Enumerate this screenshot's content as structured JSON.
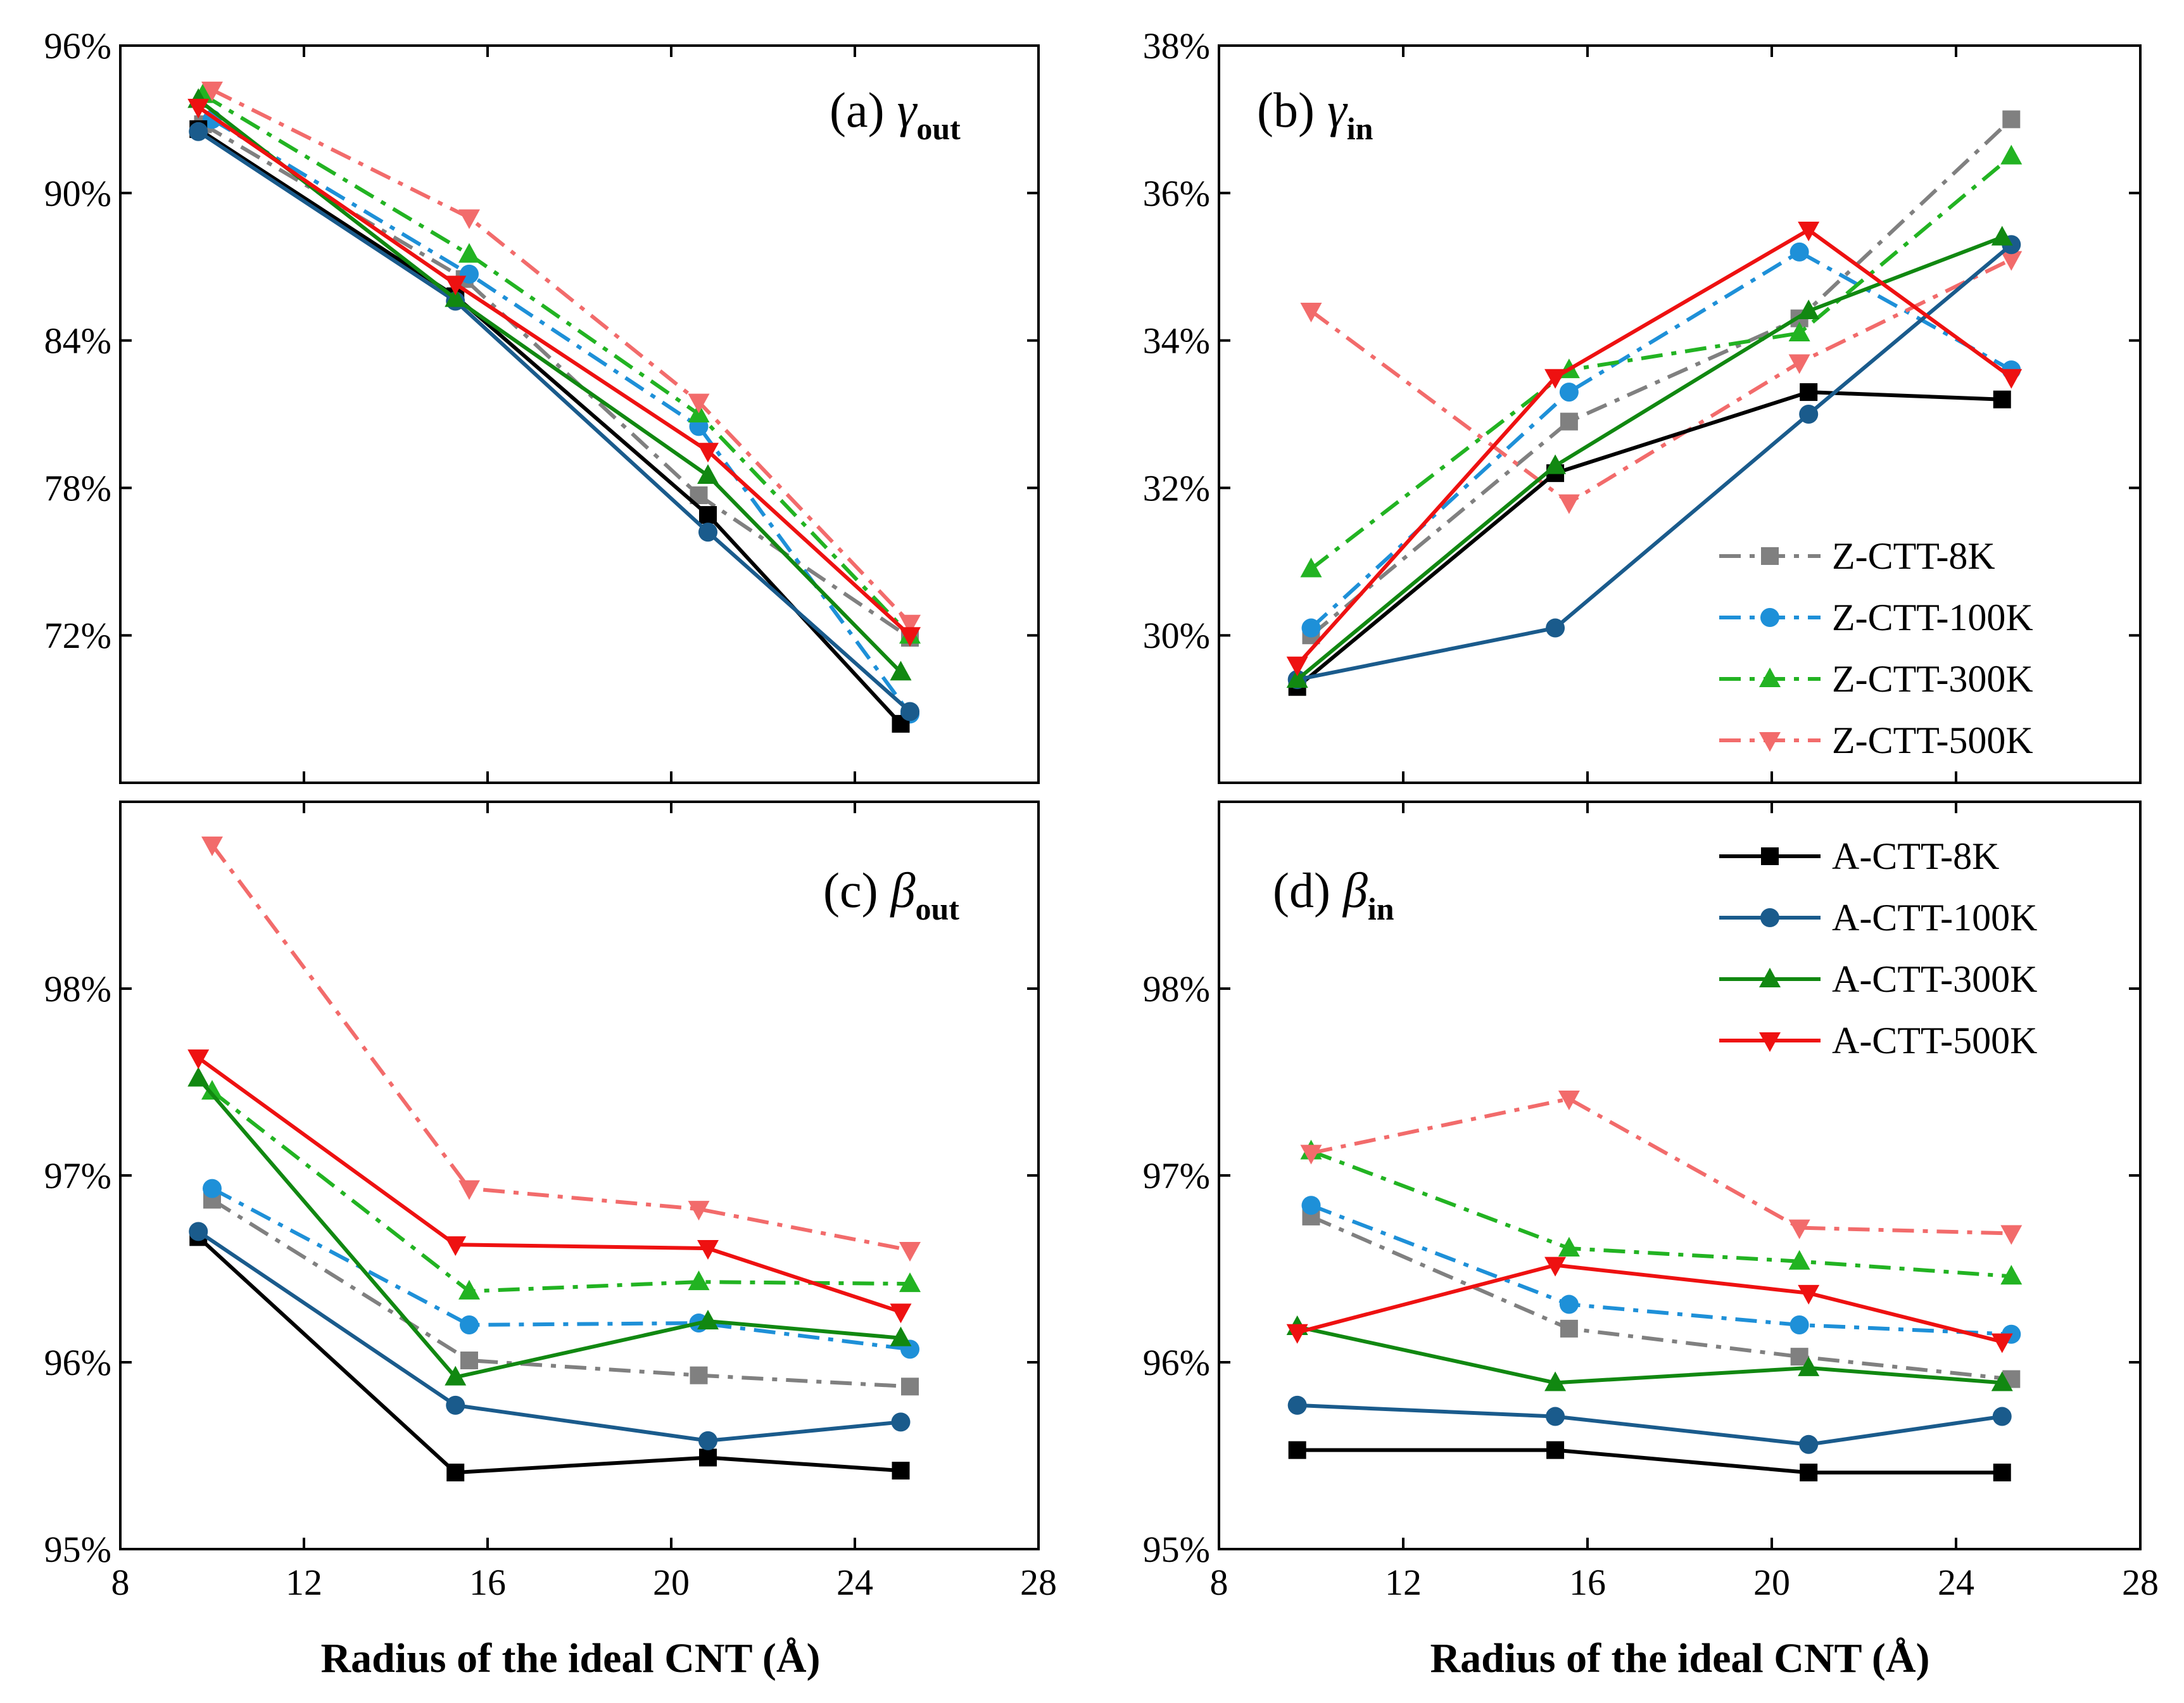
{
  "figure": {
    "xlabel": "Radius of the ideal CNT (Å)"
  },
  "series_styles": {
    "Z-CTT-8K": {
      "color": "#808080",
      "dash": "dashdot",
      "marker": "square"
    },
    "Z-CTT-100K": {
      "color": "#1E90D8",
      "dash": "dashdot",
      "marker": "circle"
    },
    "Z-CTT-300K": {
      "color": "#22B322",
      "dash": "dashdot",
      "marker": "triangle-up"
    },
    "Z-CTT-500K": {
      "color": "#F26B6B",
      "dash": "dashdot",
      "marker": "triangle-down"
    },
    "A-CTT-8K": {
      "color": "#000000",
      "dash": "solid",
      "marker": "square"
    },
    "A-CTT-100K": {
      "color": "#1A5B8C",
      "dash": "solid",
      "marker": "circle"
    },
    "A-CTT-300K": {
      "color": "#118811",
      "dash": "solid",
      "marker": "triangle-up"
    },
    "A-CTT-500K": {
      "color": "#EE1111",
      "dash": "solid",
      "marker": "triangle-down"
    }
  },
  "legends": {
    "zigzag": [
      "Z-CTT-8K",
      "Z-CTT-100K",
      "Z-CTT-300K",
      "Z-CTT-500K"
    ],
    "armchair": [
      "A-CTT-8K",
      "A-CTT-100K",
      "A-CTT-300K",
      "A-CTT-500K"
    ]
  },
  "chart_data": [
    {
      "type": "line",
      "panel": "a",
      "title_prefix": "(a)",
      "title_symbol": "γ",
      "title_sub": "out",
      "xlabel": "",
      "ylabel": "",
      "xlim": [
        8,
        28
      ],
      "ylim": [
        66,
        96
      ],
      "xticks": [
        8,
        12,
        16,
        20,
        24,
        28
      ],
      "xtick_labels": [
        "",
        "",
        "",
        "",
        "",
        ""
      ],
      "yticks": [
        72,
        78,
        84,
        90,
        96
      ],
      "ytick_labels": [
        "72%",
        "78%",
        "84%",
        "90%",
        "96%"
      ],
      "series": [
        {
          "name": "Z-CTT-8K",
          "x": [
            9.8,
            15.5,
            20.6,
            25.2
          ],
          "values": [
            92.8,
            86.5,
            77.7,
            71.9
          ]
        },
        {
          "name": "Z-CTT-100K",
          "x": [
            10.0,
            15.6,
            20.6,
            25.2
          ],
          "values": [
            93.0,
            86.7,
            80.5,
            68.8
          ]
        },
        {
          "name": "Z-CTT-300K",
          "x": [
            9.8,
            15.6,
            20.6,
            25.2
          ],
          "values": [
            94.0,
            87.5,
            81.0,
            72.0
          ]
        },
        {
          "name": "Z-CTT-500K",
          "x": [
            10.0,
            15.6,
            20.6,
            25.2
          ],
          "values": [
            94.2,
            89.0,
            81.5,
            72.5
          ]
        },
        {
          "name": "A-CTT-8K",
          "x": [
            9.7,
            15.3,
            20.8,
            25.0
          ],
          "values": [
            92.6,
            85.8,
            76.9,
            68.4
          ]
        },
        {
          "name": "A-CTT-100K",
          "x": [
            9.7,
            15.3,
            20.8,
            25.2
          ],
          "values": [
            92.5,
            85.6,
            76.2,
            68.9
          ]
        },
        {
          "name": "A-CTT-300K",
          "x": [
            9.7,
            15.3,
            20.8,
            25.0
          ],
          "values": [
            93.8,
            85.7,
            78.5,
            70.5
          ]
        },
        {
          "name": "A-CTT-500K",
          "x": [
            9.7,
            15.3,
            20.8,
            25.2
          ],
          "values": [
            93.5,
            86.3,
            79.5,
            72.0
          ]
        }
      ]
    },
    {
      "type": "line",
      "panel": "b",
      "title_prefix": "(b)",
      "title_symbol": "γ",
      "title_sub": "in",
      "xlabel": "",
      "ylabel": "",
      "xlim": [
        8,
        28
      ],
      "ylim": [
        28,
        38
      ],
      "xticks": [
        8,
        12,
        16,
        20,
        24,
        28
      ],
      "xtick_labels": [
        "",
        "",
        "",
        "",
        "",
        ""
      ],
      "yticks": [
        30,
        32,
        34,
        36,
        38
      ],
      "ytick_labels": [
        "30%",
        "32%",
        "34%",
        "36%",
        "38%"
      ],
      "series": [
        {
          "name": "Z-CTT-8K",
          "x": [
            10.0,
            15.6,
            20.6,
            25.2
          ],
          "values": [
            30.0,
            32.9,
            34.3,
            37.0
          ]
        },
        {
          "name": "Z-CTT-100K",
          "x": [
            10.0,
            15.6,
            20.6,
            25.2
          ],
          "values": [
            30.1,
            33.3,
            35.2,
            33.6
          ]
        },
        {
          "name": "Z-CTT-300K",
          "x": [
            10.0,
            15.6,
            20.6,
            25.2
          ],
          "values": [
            30.9,
            33.6,
            34.1,
            36.5
          ]
        },
        {
          "name": "Z-CTT-500K",
          "x": [
            10.0,
            15.6,
            20.6,
            25.2
          ],
          "values": [
            34.4,
            31.8,
            33.7,
            35.1
          ]
        },
        {
          "name": "A-CTT-8K",
          "x": [
            9.7,
            15.3,
            20.8,
            25.0
          ],
          "values": [
            29.3,
            32.2,
            33.3,
            33.2
          ]
        },
        {
          "name": "A-CTT-100K",
          "x": [
            9.7,
            15.3,
            20.8,
            25.2
          ],
          "values": [
            29.4,
            30.1,
            33.0,
            35.3
          ]
        },
        {
          "name": "A-CTT-300K",
          "x": [
            9.7,
            15.3,
            20.8,
            25.0
          ],
          "values": [
            29.4,
            32.3,
            34.4,
            35.4
          ]
        },
        {
          "name": "A-CTT-500K",
          "x": [
            9.7,
            15.3,
            20.8,
            25.2
          ],
          "values": [
            29.6,
            33.5,
            35.5,
            33.5
          ]
        }
      ]
    },
    {
      "type": "line",
      "panel": "c",
      "title_prefix": "(c)",
      "title_symbol": "β",
      "title_sub": "out",
      "xlabel": "Radius of the ideal CNT (Å)",
      "ylabel": "",
      "xlim": [
        8,
        28
      ],
      "ylim": [
        95,
        99
      ],
      "xticks": [
        8,
        12,
        16,
        20,
        24,
        28
      ],
      "xtick_labels": [
        "8",
        "12",
        "16",
        "20",
        "24",
        "28"
      ],
      "yticks": [
        95,
        96,
        97,
        98
      ],
      "ytick_labels": [
        "95%",
        "96%",
        "97%",
        "98%"
      ],
      "series": [
        {
          "name": "Z-CTT-8K",
          "x": [
            10.0,
            15.6,
            20.6,
            25.2
          ],
          "values": [
            96.87,
            96.01,
            95.93,
            95.87
          ]
        },
        {
          "name": "Z-CTT-100K",
          "x": [
            10.0,
            15.6,
            20.6,
            25.2
          ],
          "values": [
            96.93,
            96.2,
            96.21,
            96.07
          ]
        },
        {
          "name": "Z-CTT-300K",
          "x": [
            10.0,
            15.6,
            20.6,
            25.2
          ],
          "values": [
            97.45,
            96.38,
            96.43,
            96.42
          ]
        },
        {
          "name": "Z-CTT-500K",
          "x": [
            10.0,
            15.6,
            20.6,
            25.2
          ],
          "values": [
            98.77,
            96.93,
            96.82,
            96.6
          ]
        },
        {
          "name": "A-CTT-8K",
          "x": [
            9.7,
            15.3,
            20.8,
            25.0
          ],
          "values": [
            96.67,
            95.41,
            95.49,
            95.42
          ]
        },
        {
          "name": "A-CTT-100K",
          "x": [
            9.7,
            15.3,
            20.8,
            25.0
          ],
          "values": [
            96.7,
            95.77,
            95.58,
            95.68
          ]
        },
        {
          "name": "A-CTT-300K",
          "x": [
            9.7,
            15.3,
            20.8,
            25.0
          ],
          "values": [
            97.52,
            95.92,
            96.22,
            96.13
          ]
        },
        {
          "name": "A-CTT-500K",
          "x": [
            9.7,
            15.3,
            20.8,
            25.0
          ],
          "values": [
            97.63,
            96.63,
            96.61,
            96.27
          ]
        }
      ]
    },
    {
      "type": "line",
      "panel": "d",
      "title_prefix": "(d)",
      "title_symbol": "β",
      "title_sub": "in",
      "xlabel": "Radius of the ideal CNT (Å)",
      "ylabel": "",
      "xlim": [
        8,
        28
      ],
      "ylim": [
        95,
        99
      ],
      "xticks": [
        8,
        12,
        16,
        20,
        24,
        28
      ],
      "xtick_labels": [
        "8",
        "12",
        "16",
        "20",
        "24",
        "28"
      ],
      "yticks": [
        95,
        96,
        97,
        98
      ],
      "ytick_labels": [
        "95%",
        "96%",
        "97%",
        "98%"
      ],
      "series": [
        {
          "name": "Z-CTT-8K",
          "x": [
            10.0,
            15.6,
            20.6,
            25.2
          ],
          "values": [
            96.78,
            96.18,
            96.03,
            95.91
          ]
        },
        {
          "name": "Z-CTT-100K",
          "x": [
            10.0,
            15.6,
            20.6,
            25.2
          ],
          "values": [
            96.84,
            96.31,
            96.2,
            96.15
          ]
        },
        {
          "name": "Z-CTT-300K",
          "x": [
            10.0,
            15.6,
            20.6,
            25.2
          ],
          "values": [
            97.13,
            96.61,
            96.54,
            96.46
          ]
        },
        {
          "name": "Z-CTT-500K",
          "x": [
            10.0,
            15.6,
            20.6,
            25.2
          ],
          "values": [
            97.12,
            97.41,
            96.72,
            96.69
          ]
        },
        {
          "name": "A-CTT-8K",
          "x": [
            9.7,
            15.3,
            20.8,
            25.0
          ],
          "values": [
            95.53,
            95.53,
            95.41,
            95.41
          ]
        },
        {
          "name": "A-CTT-100K",
          "x": [
            9.7,
            15.3,
            20.8,
            25.0
          ],
          "values": [
            95.77,
            95.71,
            95.56,
            95.71
          ]
        },
        {
          "name": "A-CTT-300K",
          "x": [
            9.7,
            15.3,
            20.8,
            25.0
          ],
          "values": [
            96.19,
            95.89,
            95.97,
            95.89
          ]
        },
        {
          "name": "A-CTT-500K",
          "x": [
            9.7,
            15.3,
            20.8,
            25.0
          ],
          "values": [
            96.16,
            96.52,
            96.37,
            96.11
          ]
        }
      ]
    }
  ]
}
